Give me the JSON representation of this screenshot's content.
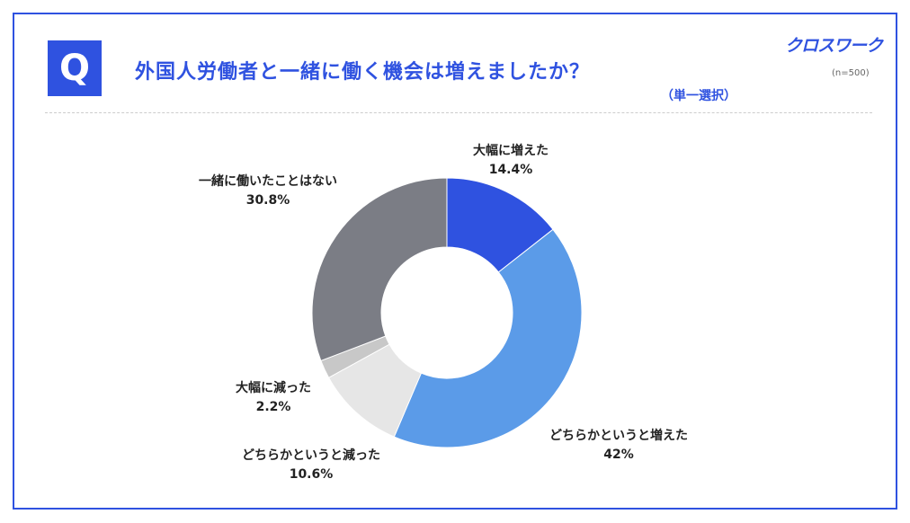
{
  "header": {
    "q_label": "Q",
    "title": "外国人労働者と一緒に働く機会は増えましたか？",
    "subtitle": "（単一選択）",
    "logo": "クロスワーク",
    "sample": "(n=500)"
  },
  "chart_data": {
    "type": "pie",
    "donut": true,
    "title": "外国人労働者と一緒に働く機会は増えましたか？",
    "categories": [
      "大幅に増えた",
      "どちらかというと増えた",
      "どちらかというと減った",
      "大幅に減った",
      "一緒に働いたことはない"
    ],
    "values": [
      14.4,
      42,
      10.6,
      2.2,
      30.8
    ],
    "value_labels": [
      "14.4%",
      "42%",
      "10.6%",
      "2.2%",
      "30.8%"
    ],
    "colors": [
      "#2f52e0",
      "#5b9be8",
      "#e6e6e6",
      "#c8c8c8",
      "#7b7d85"
    ],
    "unit": "%"
  }
}
